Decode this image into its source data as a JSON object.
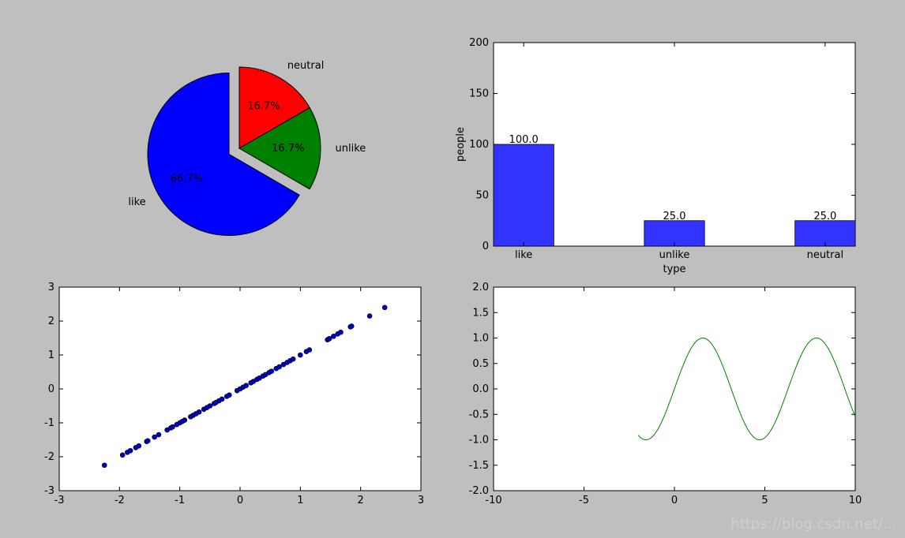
{
  "chart_data": [
    {
      "type": "pie",
      "slices": [
        {
          "label": "like",
          "value": 66.7,
          "pct_label": "66.7%",
          "color": "#0000ff",
          "explode": true
        },
        {
          "label": "unlike",
          "value": 16.7,
          "pct_label": "16.7%",
          "color": "#008000",
          "explode": false
        },
        {
          "label": "neutral",
          "value": 16.7,
          "pct_label": "16.7%",
          "color": "#ff0000",
          "explode": false
        }
      ]
    },
    {
      "type": "bar",
      "categories": [
        "like",
        "unlike",
        "neutral"
      ],
      "values": [
        100.0,
        25.0,
        25.0
      ],
      "value_labels": [
        "100.0",
        "25.0",
        "25.0"
      ],
      "xlabel": "type",
      "ylabel": "people",
      "ylim": [
        0,
        200
      ],
      "yticks": [
        "0",
        "50",
        "100",
        "150",
        "200"
      ],
      "bar_color": "#3333ff"
    },
    {
      "type": "scatter",
      "xlim": [
        -3,
        3
      ],
      "ylim": [
        -3,
        3
      ],
      "xticks": [
        "-3",
        "-2",
        "-1",
        "0",
        "1",
        "2",
        "3"
      ],
      "yticks": [
        "-3",
        "-2",
        "-1",
        "0",
        "1",
        "2",
        "3"
      ],
      "marker_color": "#0000bf",
      "points": [
        [
          -2.25,
          -2.25
        ],
        [
          -1.95,
          -1.95
        ],
        [
          -1.87,
          -1.87
        ],
        [
          -1.82,
          -1.82
        ],
        [
          -1.73,
          -1.73
        ],
        [
          -1.68,
          -1.68
        ],
        [
          -1.55,
          -1.55
        ],
        [
          -1.53,
          -1.53
        ],
        [
          -1.42,
          -1.42
        ],
        [
          -1.35,
          -1.35
        ],
        [
          -1.21,
          -1.21
        ],
        [
          -1.15,
          -1.15
        ],
        [
          -1.12,
          -1.12
        ],
        [
          -1.05,
          -1.05
        ],
        [
          -1.0,
          -1.0
        ],
        [
          -0.96,
          -0.96
        ],
        [
          -0.92,
          -0.92
        ],
        [
          -0.82,
          -0.82
        ],
        [
          -0.78,
          -0.78
        ],
        [
          -0.73,
          -0.73
        ],
        [
          -0.68,
          -0.68
        ],
        [
          -0.6,
          -0.6
        ],
        [
          -0.55,
          -0.55
        ],
        [
          -0.5,
          -0.5
        ],
        [
          -0.43,
          -0.43
        ],
        [
          -0.4,
          -0.4
        ],
        [
          -0.35,
          -0.35
        ],
        [
          -0.3,
          -0.3
        ],
        [
          -0.22,
          -0.22
        ],
        [
          -0.18,
          -0.18
        ],
        [
          -0.05,
          -0.05
        ],
        [
          0.0,
          0.0
        ],
        [
          0.05,
          0.05
        ],
        [
          0.1,
          0.1
        ],
        [
          0.18,
          0.18
        ],
        [
          0.22,
          0.22
        ],
        [
          0.28,
          0.28
        ],
        [
          0.32,
          0.32
        ],
        [
          0.38,
          0.38
        ],
        [
          0.42,
          0.42
        ],
        [
          0.48,
          0.48
        ],
        [
          0.52,
          0.52
        ],
        [
          0.6,
          0.6
        ],
        [
          0.65,
          0.65
        ],
        [
          0.72,
          0.72
        ],
        [
          0.78,
          0.78
        ],
        [
          0.83,
          0.83
        ],
        [
          0.88,
          0.88
        ],
        [
          1.0,
          1.0
        ],
        [
          1.1,
          1.1
        ],
        [
          1.15,
          1.15
        ],
        [
          1.45,
          1.45
        ],
        [
          1.48,
          1.48
        ],
        [
          1.55,
          1.55
        ],
        [
          1.62,
          1.62
        ],
        [
          1.67,
          1.67
        ],
        [
          1.83,
          1.83
        ],
        [
          1.85,
          1.85
        ],
        [
          2.15,
          2.15
        ],
        [
          2.4,
          2.4
        ]
      ]
    },
    {
      "type": "line",
      "xlim": [
        -10,
        10
      ],
      "ylim": [
        -2.0,
        2.0
      ],
      "xticks": [
        "-10",
        "-5",
        "0",
        "5",
        "10"
      ],
      "yticks": [
        "-2.0",
        "-1.5",
        "-1.0",
        "-0.5",
        "0.0",
        "0.5",
        "1.0",
        "1.5",
        "2.0"
      ],
      "series": [
        {
          "function": "sin(x)",
          "x_start": -2.0,
          "x_end": 10.0,
          "color": "#008000"
        }
      ]
    }
  ],
  "watermark": "https://blog.csdn.net/..."
}
